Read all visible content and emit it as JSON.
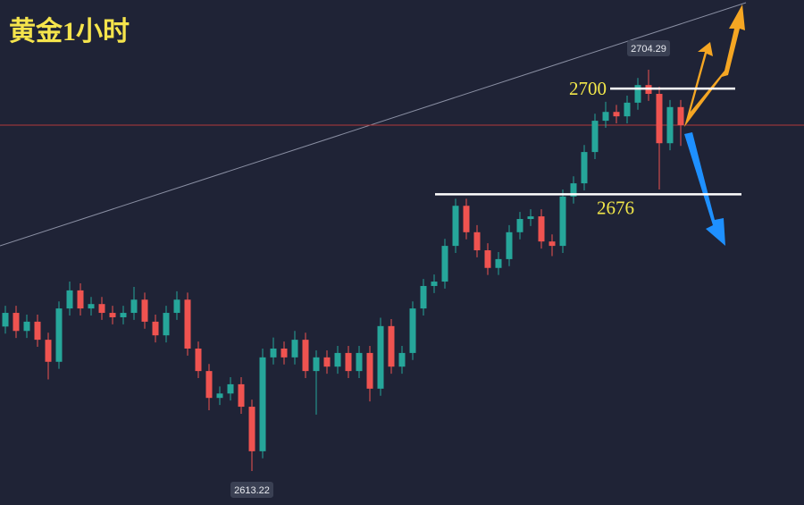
{
  "chart_data": {
    "type": "candlestick",
    "title": "黄金1小时",
    "ylim": [
      2605.5,
      2720.1
    ],
    "up_color": "#26a69a",
    "down_color": "#ef5350",
    "open": [
      2646.0,
      2649.1,
      2645.0,
      2647.1,
      2643.0,
      2638.0,
      2650.1,
      2654.2,
      2650.1,
      2651.1,
      2649.1,
      2648.1,
      2649.1,
      2652.1,
      2647.1,
      2644.0,
      2649.1,
      2652.1,
      2641.0,
      2635.9,
      2629.8,
      2630.8,
      2632.9,
      2627.8,
      2617.7,
      2639.0,
      2641.0,
      2639.0,
      2643.0,
      2635.9,
      2639.0,
      2636.9,
      2640.0,
      2635.9,
      2640.0,
      2631.9,
      2646.1,
      2636.9,
      2640.0,
      2650.1,
      2655.2,
      2656.2,
      2664.3,
      2673.4,
      2667.4,
      2663.3,
      2659.3,
      2661.3,
      2667.4,
      2670.4,
      2671.0,
      2665.3,
      2664.3,
      2675.5,
      2678.5,
      2685.6,
      2692.7,
      2694.7,
      2693.7,
      2696.8,
      2700.8,
      2698.8,
      2687.6,
      2695.8
    ],
    "high": [
      2650.7,
      2650.7,
      2648.7,
      2648.7,
      2644.6,
      2651.7,
      2656.2,
      2655.8,
      2652.7,
      2652.7,
      2650.7,
      2650.7,
      2655.0,
      2653.7,
      2648.7,
      2650.7,
      2654.0,
      2653.7,
      2642.6,
      2637.5,
      2632.4,
      2634.5,
      2634.5,
      2629.4,
      2641.0,
      2643.5,
      2642.6,
      2645.0,
      2644.6,
      2640.6,
      2640.6,
      2641.6,
      2641.6,
      2641.6,
      2641.6,
      2648.0,
      2647.7,
      2641.6,
      2651.7,
      2656.8,
      2657.8,
      2665.9,
      2675.0,
      2675.0,
      2669.0,
      2664.9,
      2662.9,
      2669.0,
      2672.0,
      2672.6,
      2672.6,
      2666.9,
      2677.1,
      2680.1,
      2687.2,
      2694.3,
      2697.0,
      2696.3,
      2698.4,
      2702.4,
      2704.29,
      2700.4,
      2697.4,
      2697.4
    ],
    "low": [
      2644.4,
      2643.4,
      2643.4,
      2641.4,
      2634.0,
      2636.4,
      2648.5,
      2648.5,
      2648.5,
      2647.5,
      2646.5,
      2646.5,
      2647.5,
      2645.5,
      2642.4,
      2642.4,
      2647.5,
      2639.4,
      2634.3,
      2627.0,
      2628.2,
      2629.2,
      2626.2,
      2613.22,
      2616.1,
      2637.4,
      2637.4,
      2637.4,
      2634.3,
      2626.0,
      2635.3,
      2635.3,
      2634.3,
      2634.3,
      2629.0,
      2630.3,
      2635.3,
      2635.3,
      2638.4,
      2648.5,
      2653.6,
      2654.6,
      2662.7,
      2665.8,
      2661.7,
      2657.7,
      2657.7,
      2659.7,
      2665.8,
      2668.8,
      2663.7,
      2662.0,
      2662.7,
      2673.9,
      2676.9,
      2684.0,
      2691.1,
      2692.1,
      2692.1,
      2695.2,
      2697.2,
      2677.1,
      2686.0,
      2687.0
    ],
    "close": [
      2649.1,
      2645.0,
      2647.1,
      2643.0,
      2638.0,
      2650.1,
      2654.2,
      2650.1,
      2651.1,
      2649.1,
      2648.1,
      2649.1,
      2652.1,
      2647.1,
      2644.0,
      2649.1,
      2652.1,
      2641.0,
      2635.9,
      2629.8,
      2630.8,
      2632.9,
      2627.8,
      2617.7,
      2639.0,
      2641.0,
      2639.0,
      2643.0,
      2635.9,
      2639.0,
      2636.9,
      2640.0,
      2635.9,
      2640.0,
      2631.9,
      2646.1,
      2636.9,
      2640.0,
      2650.1,
      2655.2,
      2656.2,
      2664.3,
      2673.4,
      2667.4,
      2663.3,
      2659.3,
      2661.3,
      2667.4,
      2670.4,
      2671.0,
      2665.3,
      2664.3,
      2675.5,
      2678.5,
      2685.6,
      2692.7,
      2694.7,
      2693.7,
      2696.8,
      2700.8,
      2698.8,
      2687.6,
      2695.8,
      2691.7
    ],
    "levels": [
      2700,
      2676
    ]
  }
}
